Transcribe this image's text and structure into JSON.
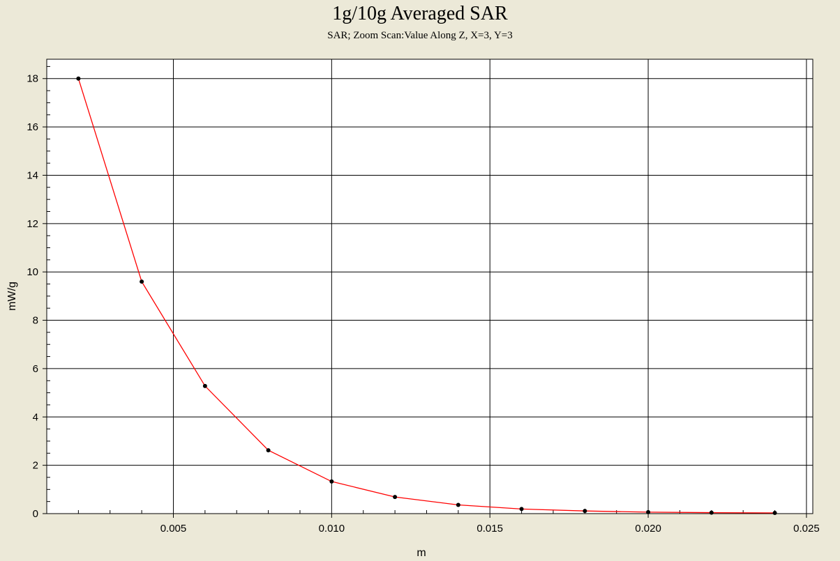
{
  "chart_data": {
    "type": "line",
    "title": "1g/10g Averaged SAR",
    "subtitle": "SAR; Zoom Scan:Value Along Z, X=3, Y=3",
    "xlabel": "m",
    "ylabel": "mW/g",
    "xlim": [
      0.001,
      0.0252
    ],
    "ylim": [
      0,
      18.8
    ],
    "xticks": [
      0.005,
      0.01,
      0.015,
      0.02,
      0.025
    ],
    "xtick_labels": [
      "0.005",
      "0.010",
      "0.015",
      "0.020",
      "0.025"
    ],
    "yticks": [
      0,
      2,
      4,
      6,
      8,
      10,
      12,
      14,
      16,
      18
    ],
    "ytick_labels": [
      "0",
      "2",
      "4",
      "6",
      "8",
      "10",
      "12",
      "14",
      "16",
      "18"
    ],
    "grid": true,
    "legend": "none",
    "series": [
      {
        "color": "#ff0000",
        "marker_color": "#000000",
        "x": [
          0.002,
          0.004,
          0.006,
          0.008,
          0.01,
          0.012,
          0.014,
          0.016,
          0.018,
          0.02,
          0.022,
          0.024
        ],
        "values": [
          18.0,
          9.6,
          5.28,
          2.62,
          1.33,
          0.69,
          0.36,
          0.19,
          0.11,
          0.06,
          0.04,
          0.03
        ]
      }
    ]
  }
}
